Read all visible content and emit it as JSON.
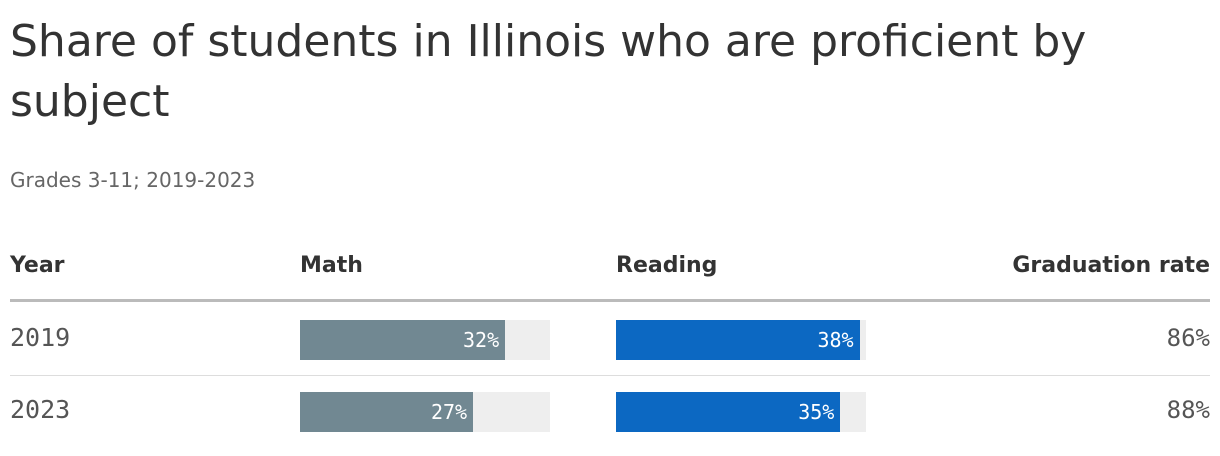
{
  "title": "Share of students in Illinois who are proficient by subject",
  "subtitle": "Grades 3-11; 2019-2023",
  "colors": {
    "math": "#718892",
    "reading": "#0c68c2",
    "track": "#eeeeee"
  },
  "chart_data": {
    "type": "table",
    "title": "Share of students in Illinois who are proficient by subject",
    "subtitle": "Grades 3-11; 2019-2023",
    "columns": [
      "Year",
      "Math",
      "Reading",
      "Graduation rate"
    ],
    "scale_max": 39,
    "rows": [
      {
        "year": "2019",
        "math": 32,
        "math_label": "32%",
        "reading": 38,
        "reading_label": "38%",
        "graduation": "86%"
      },
      {
        "year": "2023",
        "math": 27,
        "math_label": "27%",
        "reading": 35,
        "reading_label": "35%",
        "graduation": "88%"
      }
    ]
  }
}
